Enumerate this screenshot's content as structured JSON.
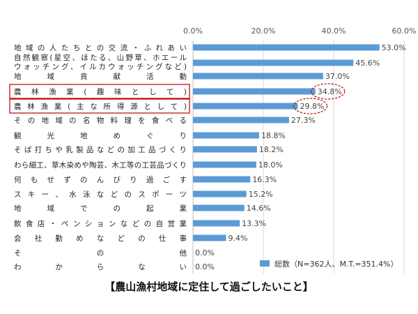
{
  "chart_data": {
    "type": "bar",
    "orientation": "horizontal",
    "title": "【農山漁村地域に定住して過ごしたいこと】",
    "categories": [
      [
        "地域の人たちとの交流・ふれあい"
      ],
      [
        "自然観察(星空、ほたる、山野草、ホエール",
        "ウォッチング、イルカウォッチングなど)"
      ],
      [
        "地域貢献活動"
      ],
      [
        "農林漁業(趣味として)"
      ],
      [
        "農林漁業(主な所得源として)"
      ],
      [
        "その地域の名物料理を食べる"
      ],
      [
        "観光地めぐり"
      ],
      [
        "そば打ちや乳製品などの加工品づくり"
      ],
      [
        "わら細工、草木染めや陶芸、木工等の工芸品づくり"
      ],
      [
        "何もせずのんびり過ごす"
      ],
      [
        "スキー、水泳などのスポーツ"
      ],
      [
        "地域での起業"
      ],
      [
        "飲食店・ペンションなどの自営業"
      ],
      [
        "会社勤めなどの仕事"
      ],
      [
        "その他"
      ],
      [
        "わからない"
      ]
    ],
    "series": [
      {
        "name": "総数（N=362人、M.T.=351.4%）",
        "values": [
          53.0,
          45.6,
          37.0,
          34.8,
          29.8,
          27.3,
          18.8,
          18.2,
          18.0,
          16.3,
          15.2,
          14.6,
          13.3,
          9.4,
          0.0,
          0.0
        ],
        "labels": [
          "53.0%",
          "45.6%",
          "37.0%",
          "34.8%",
          "29.8%",
          "27.3%",
          "18.8%",
          "18.2%",
          "18.0%",
          "16.3%",
          "15.2%",
          "14.6%",
          "13.3%",
          "9.4%",
          "0.0%",
          "0.0%"
        ]
      }
    ],
    "xlim": [
      0,
      60
    ],
    "xticks": [
      "0.0%",
      "20.0%",
      "40.0%",
      "60.0%"
    ],
    "grid": true,
    "legend_position": "bottom-right",
    "highlighted_categories": [
      3,
      4
    ],
    "colors": {
      "bar": "#5b9bd5",
      "highlight": "#c00000",
      "grid": "#d9d9d9"
    }
  }
}
